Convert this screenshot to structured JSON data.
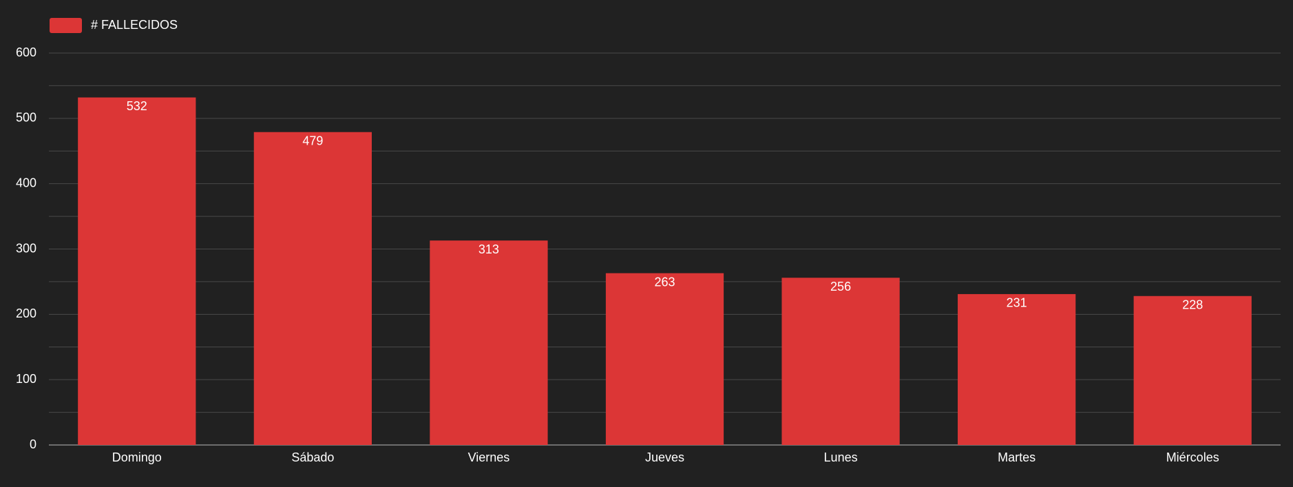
{
  "chart_data": {
    "type": "bar",
    "legend_label": "# FALLECIDOS",
    "categories": [
      "Domingo",
      "Sábado",
      "Viernes",
      "Jueves",
      "Lunes",
      "Martes",
      "Miércoles"
    ],
    "values": [
      532,
      479,
      313,
      263,
      256,
      231,
      228
    ],
    "color": "#dc3636",
    "ylim": [
      0,
      600
    ],
    "yticks": [
      0,
      100,
      200,
      300,
      400,
      500,
      600
    ],
    "grid": true
  }
}
